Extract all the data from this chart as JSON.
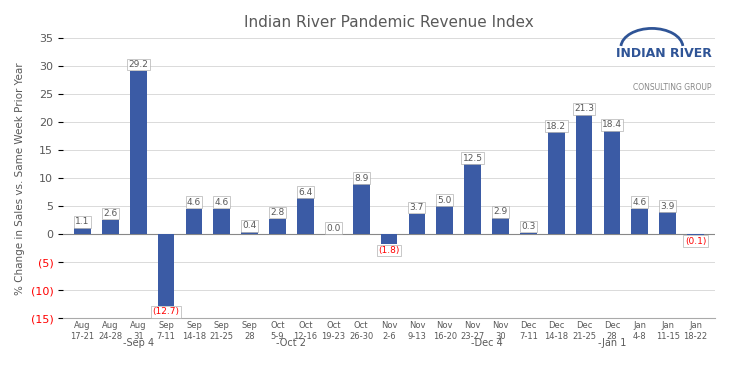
{
  "title": "Indian River Pandemic Revenue Index",
  "ylabel": "% Change in Sales vs. Same Week Prior Year",
  "categories": [
    "Aug\n17-21",
    "Aug\n24-28",
    "Aug\n31",
    "Sep\n7-11",
    "Sep\n14-18",
    "Sep\n21-25",
    "Sep\n28",
    "Oct\n5-9",
    "Oct\n12-16",
    "Oct\n19-23",
    "Oct\n26-30",
    "Nov\n2-6",
    "Nov\n9-13",
    "Nov\n16-20",
    "Nov\n23-27",
    "Nov\n30",
    "Dec\n7-11",
    "Dec\n14-18",
    "Dec\n21-25",
    "Dec\n28",
    "Jan\n4-8",
    "Jan\n11-15",
    "Jan\n18-22"
  ],
  "group_labels": [
    [
      "-Sep 4",
      2.0
    ],
    [
      "-Oct 2",
      7.5
    ],
    [
      "-Dec 4",
      14.5
    ],
    [
      "-Jan 1",
      19.0
    ]
  ],
  "values": [
    1.1,
    2.6,
    29.2,
    -12.7,
    4.6,
    4.6,
    0.4,
    2.8,
    6.4,
    0.0,
    8.9,
    -1.8,
    3.7,
    5.0,
    12.5,
    2.9,
    0.3,
    18.2,
    21.3,
    18.4,
    4.6,
    3.9,
    -0.1
  ],
  "bar_color": "#3B5BA5",
  "label_color_positive": "#595959",
  "label_color_negative": "#FF0000",
  "ylim": [
    -15,
    35
  ],
  "yticks": [
    -15,
    -10,
    -5,
    0,
    5,
    10,
    15,
    20,
    25,
    30,
    35
  ],
  "ytick_labels": [
    "(15)",
    "(10)",
    "(5)",
    "0",
    "5",
    "10",
    "15",
    "20",
    "25",
    "30",
    "35"
  ],
  "ytick_colors": [
    "#FF0000",
    "#FF0000",
    "#FF0000",
    "#595959",
    "#595959",
    "#595959",
    "#595959",
    "#595959",
    "#595959",
    "#595959",
    "#595959"
  ],
  "background_color": "#FFFFFF",
  "grid_color": "#CCCCCC",
  "logo_text1": "INDIAN RIVER",
  "logo_text2": "CONSULTING GROUP",
  "logo_color1": "#2F5496",
  "logo_color2": "#888888",
  "arc_color": "#2F5496"
}
